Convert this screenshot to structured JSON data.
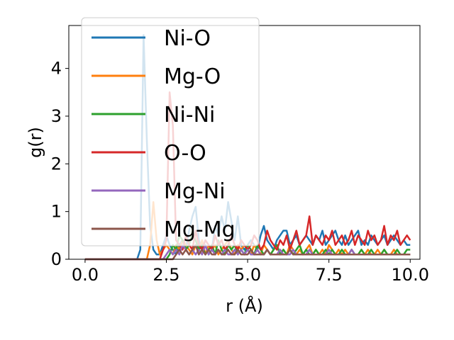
{
  "chart_data": {
    "type": "line",
    "title": "",
    "xlabel": "r (Å)",
    "ylabel": "g(r)",
    "xlim": [
      -0.5,
      10.3
    ],
    "ylim": [
      0,
      4.9
    ],
    "xticks": [
      0.0,
      2.5,
      5.0,
      7.5,
      10.0
    ],
    "xtick_labels": [
      "0.0",
      "2.5",
      "5.0",
      "7.5",
      "10.0"
    ],
    "yticks": [
      0,
      1,
      2,
      3,
      4
    ],
    "ytick_labels": [
      "0",
      "1",
      "2",
      "3",
      "4"
    ],
    "grid": false,
    "legend_position": "upper-left",
    "x": [
      0.0,
      0.1,
      0.2,
      0.3,
      0.4,
      0.5,
      0.6,
      0.7,
      0.8,
      0.9,
      1.0,
      1.1,
      1.2,
      1.3,
      1.4,
      1.5,
      1.6,
      1.7,
      1.8,
      1.9,
      2.0,
      2.1,
      2.2,
      2.3,
      2.4,
      2.5,
      2.6,
      2.7,
      2.8,
      2.9,
      3.0,
      3.1,
      3.2,
      3.3,
      3.4,
      3.5,
      3.6,
      3.7,
      3.8,
      3.9,
      4.0,
      4.1,
      4.2,
      4.3,
      4.4,
      4.5,
      4.6,
      4.7,
      4.8,
      4.9,
      5.0,
      5.1,
      5.2,
      5.3,
      5.4,
      5.5,
      5.6,
      5.7,
      5.8,
      5.9,
      6.0,
      6.1,
      6.2,
      6.3,
      6.4,
      6.5,
      6.6,
      6.7,
      6.8,
      6.9,
      7.0,
      7.1,
      7.2,
      7.3,
      7.4,
      7.5,
      7.6,
      7.7,
      7.8,
      7.9,
      8.0,
      8.1,
      8.2,
      8.3,
      8.4,
      8.5,
      8.6,
      8.7,
      8.8,
      8.9,
      9.0,
      9.1,
      9.2,
      9.3,
      9.4,
      9.5,
      9.6,
      9.7,
      9.8,
      9.9,
      10.0
    ],
    "series": [
      {
        "name": "Ni-O",
        "color": "#1f77b4",
        "values": [
          0,
          0,
          0,
          0,
          0,
          0,
          0,
          0,
          0,
          0,
          0,
          0,
          0,
          0,
          0,
          0,
          0,
          0.2,
          4.7,
          2.5,
          0.7,
          0.2,
          0.1,
          0.1,
          0.3,
          0.5,
          0.3,
          0.2,
          0.1,
          0.3,
          0.4,
          0.2,
          0.6,
          0.9,
          1.1,
          0.4,
          0.2,
          0.3,
          0.1,
          0.2,
          0.7,
          0.5,
          0.9,
          0.6,
          1.2,
          0.8,
          0.4,
          0.9,
          0.3,
          0.2,
          0.3,
          0.4,
          0.3,
          0.2,
          0.5,
          0.7,
          0.4,
          0.3,
          0.2,
          0.4,
          0.5,
          0.6,
          0.6,
          0.3,
          0.4,
          0.5,
          0.3,
          0.4,
          0.5,
          0.4,
          0.3,
          0.5,
          0.4,
          0.6,
          0.3,
          0.4,
          0.5,
          0.6,
          0.4,
          0.3,
          0.5,
          0.3,
          0.4,
          0.5,
          0.6,
          0.3,
          0.4,
          0.3,
          0.5,
          0.4,
          0.3,
          0.4,
          0.5,
          0.3,
          0.4,
          0.5,
          0.4,
          0.3,
          0.4,
          0.3,
          0.3
        ]
      },
      {
        "name": "Mg-O",
        "color": "#ff7f0e",
        "values": [
          0,
          0,
          0,
          0,
          0,
          0,
          0,
          0,
          0,
          0,
          0,
          0,
          0,
          0,
          0,
          0,
          0,
          0,
          0,
          0,
          0.3,
          1.2,
          0.4,
          0.1,
          0.2,
          0.3,
          0.2,
          0.1,
          0.3,
          0.2,
          0.4,
          0.3,
          0.2,
          0.1,
          0.3,
          0.2,
          0.4,
          0.1,
          0.3,
          0.2,
          0.3,
          0.1,
          0.2,
          0.3,
          0.4,
          0.2,
          0.1,
          0.3,
          0.2,
          0.3,
          0.2,
          0.1,
          0.3,
          0.2,
          0.1,
          0.3,
          0.2,
          0.1,
          0.2,
          0.3,
          0.1,
          0.2,
          0.1,
          0.3,
          0.2,
          0.1,
          0.2,
          0.1,
          0.2,
          0.3,
          0.1,
          0.2,
          0.1,
          0.2,
          0.1,
          0.3,
          0.2,
          0.1,
          0.2,
          0.1,
          0.2,
          0.1,
          0.2,
          0.1,
          0.1,
          0.2,
          0.1,
          0.2,
          0.1,
          0.1,
          0.2,
          0.1,
          0.2,
          0.1,
          0.1,
          0.2,
          0.1,
          0.1,
          0.1,
          0.1,
          0.1
        ]
      },
      {
        "name": "Ni-Ni",
        "color": "#2ca02c",
        "values": [
          0,
          0,
          0,
          0,
          0,
          0,
          0,
          0,
          0,
          0,
          0,
          0,
          0,
          0,
          0,
          0,
          0,
          0,
          0,
          0,
          0,
          0,
          0,
          0,
          0,
          0,
          0.1,
          0.3,
          0.2,
          0.5,
          0.4,
          0.2,
          0.3,
          0.6,
          0.4,
          0.2,
          0.3,
          0.1,
          0.2,
          0.3,
          0.1,
          0.4,
          0.2,
          0.1,
          0.3,
          0.2,
          0.3,
          0.1,
          0.2,
          0.1,
          0.3,
          0.2,
          0.1,
          0.3,
          0.2,
          0.1,
          0.2,
          0.1,
          0.2,
          0.3,
          0.1,
          0.2,
          0.1,
          0.2,
          0.1,
          0.2,
          0.3,
          0.1,
          0.2,
          0.1,
          0.1,
          0.2,
          0.1,
          0.1,
          0.2,
          0.1,
          0.2,
          0.1,
          0.1,
          0.2,
          0.1,
          0.1,
          0.2,
          0.1,
          0.1,
          0.2,
          0.1,
          0.1,
          0.2,
          0.1,
          0.1,
          0.1,
          0.2,
          0.1,
          0.1,
          0.1,
          0.2,
          0.1,
          0.1,
          0.2,
          0.2
        ]
      },
      {
        "name": "O-O",
        "color": "#d62728",
        "values": [
          0,
          0,
          0,
          0,
          0,
          0,
          0,
          0,
          0,
          0,
          0,
          0,
          0,
          0,
          0,
          0,
          0,
          0,
          0,
          0,
          0,
          0,
          0,
          0,
          0.2,
          0.4,
          3.5,
          2.8,
          0.4,
          0.3,
          0.2,
          0.5,
          0.3,
          0.2,
          0.6,
          0.3,
          0.2,
          0.4,
          0.3,
          0.2,
          0.5,
          0.3,
          0.4,
          0.2,
          0.3,
          0.5,
          0.3,
          0.2,
          0.4,
          0.3,
          0.2,
          0.3,
          0.5,
          0.4,
          0.2,
          0.3,
          0.6,
          0.4,
          0.3,
          0.2,
          0.4,
          0.3,
          0.5,
          0.2,
          0.4,
          0.6,
          0.3,
          0.4,
          0.5,
          0.9,
          0.3,
          0.5,
          0.4,
          0.3,
          0.5,
          0.4,
          0.6,
          0.3,
          0.4,
          0.5,
          0.3,
          0.4,
          0.6,
          0.3,
          0.5,
          0.4,
          0.3,
          0.6,
          0.4,
          0.5,
          0.3,
          0.4,
          0.7,
          0.3,
          0.5,
          0.4,
          0.6,
          0.3,
          0.4,
          0.5,
          0.4
        ]
      },
      {
        "name": "Mg-Ni",
        "color": "#9467bd",
        "values": [
          0,
          0,
          0,
          0,
          0,
          0,
          0,
          0,
          0,
          0,
          0,
          0,
          0,
          0,
          0,
          0,
          0,
          0,
          0,
          0,
          0,
          0,
          0,
          0,
          0,
          0.1,
          0.2,
          0.1,
          0.2,
          0.1,
          0.3,
          0.2,
          0.1,
          0.2,
          0.1,
          0.2,
          0.1,
          0.3,
          0.1,
          0.2,
          0.1,
          0.2,
          0.1,
          0.2,
          0.1,
          0.1,
          0.2,
          0.1,
          0.2,
          0.1,
          0.2,
          0.1,
          0.1,
          0.2,
          0.1,
          0.1,
          0.2,
          0.1,
          0.1,
          0.1,
          0.2,
          0.1,
          0.1,
          0.1,
          0.2,
          0.1,
          0.1,
          0.1,
          0.1,
          0.2,
          0.1,
          0.1,
          0.1,
          0.1,
          0.1,
          0.2,
          0.1,
          0.1,
          0.1,
          0.1,
          0.1,
          0.1,
          0.2,
          0.1,
          0.1,
          0.1,
          0.1,
          0.1,
          0.1,
          0.1,
          0.1,
          0.1,
          0.1,
          0.1,
          0.1,
          0.1,
          0.1,
          0.1,
          0.1,
          0.1,
          0.1
        ]
      },
      {
        "name": "Mg-Mg",
        "color": "#8c564b",
        "values": [
          0,
          0,
          0,
          0,
          0,
          0,
          0,
          0,
          0,
          0,
          0,
          0,
          0,
          0,
          0,
          0,
          0,
          0,
          0,
          0,
          0,
          0,
          0,
          0,
          0,
          0,
          0,
          0,
          0.1,
          0.2,
          0.1,
          0.2,
          0.1,
          0.2,
          0.3,
          0.1,
          0.2,
          0.1,
          0.2,
          0.1,
          0.1,
          0.2,
          0.1,
          0.1,
          0.2,
          0.1,
          0.1,
          0.2,
          0.1,
          0.1,
          0.1,
          0.2,
          0.1,
          0.1,
          0.1,
          0.1,
          0.2,
          0.1,
          0.1,
          0.1,
          0.1,
          0.1,
          0.1,
          0.2,
          0.1,
          0.1,
          0.1,
          0.1,
          0.1,
          0.1,
          0.1,
          0.1,
          0.1,
          0.1,
          0.1,
          0.1,
          0.1,
          0.1,
          0.1,
          0.1,
          0.1,
          0.1,
          0.1,
          0.1,
          0.1,
          0.1,
          0.1,
          0.1,
          0.1,
          0.1,
          0.1,
          0.1,
          0.1,
          0.1,
          0.1,
          0.1,
          0.1,
          0.1,
          0.1,
          0.1,
          0.1
        ]
      }
    ]
  }
}
